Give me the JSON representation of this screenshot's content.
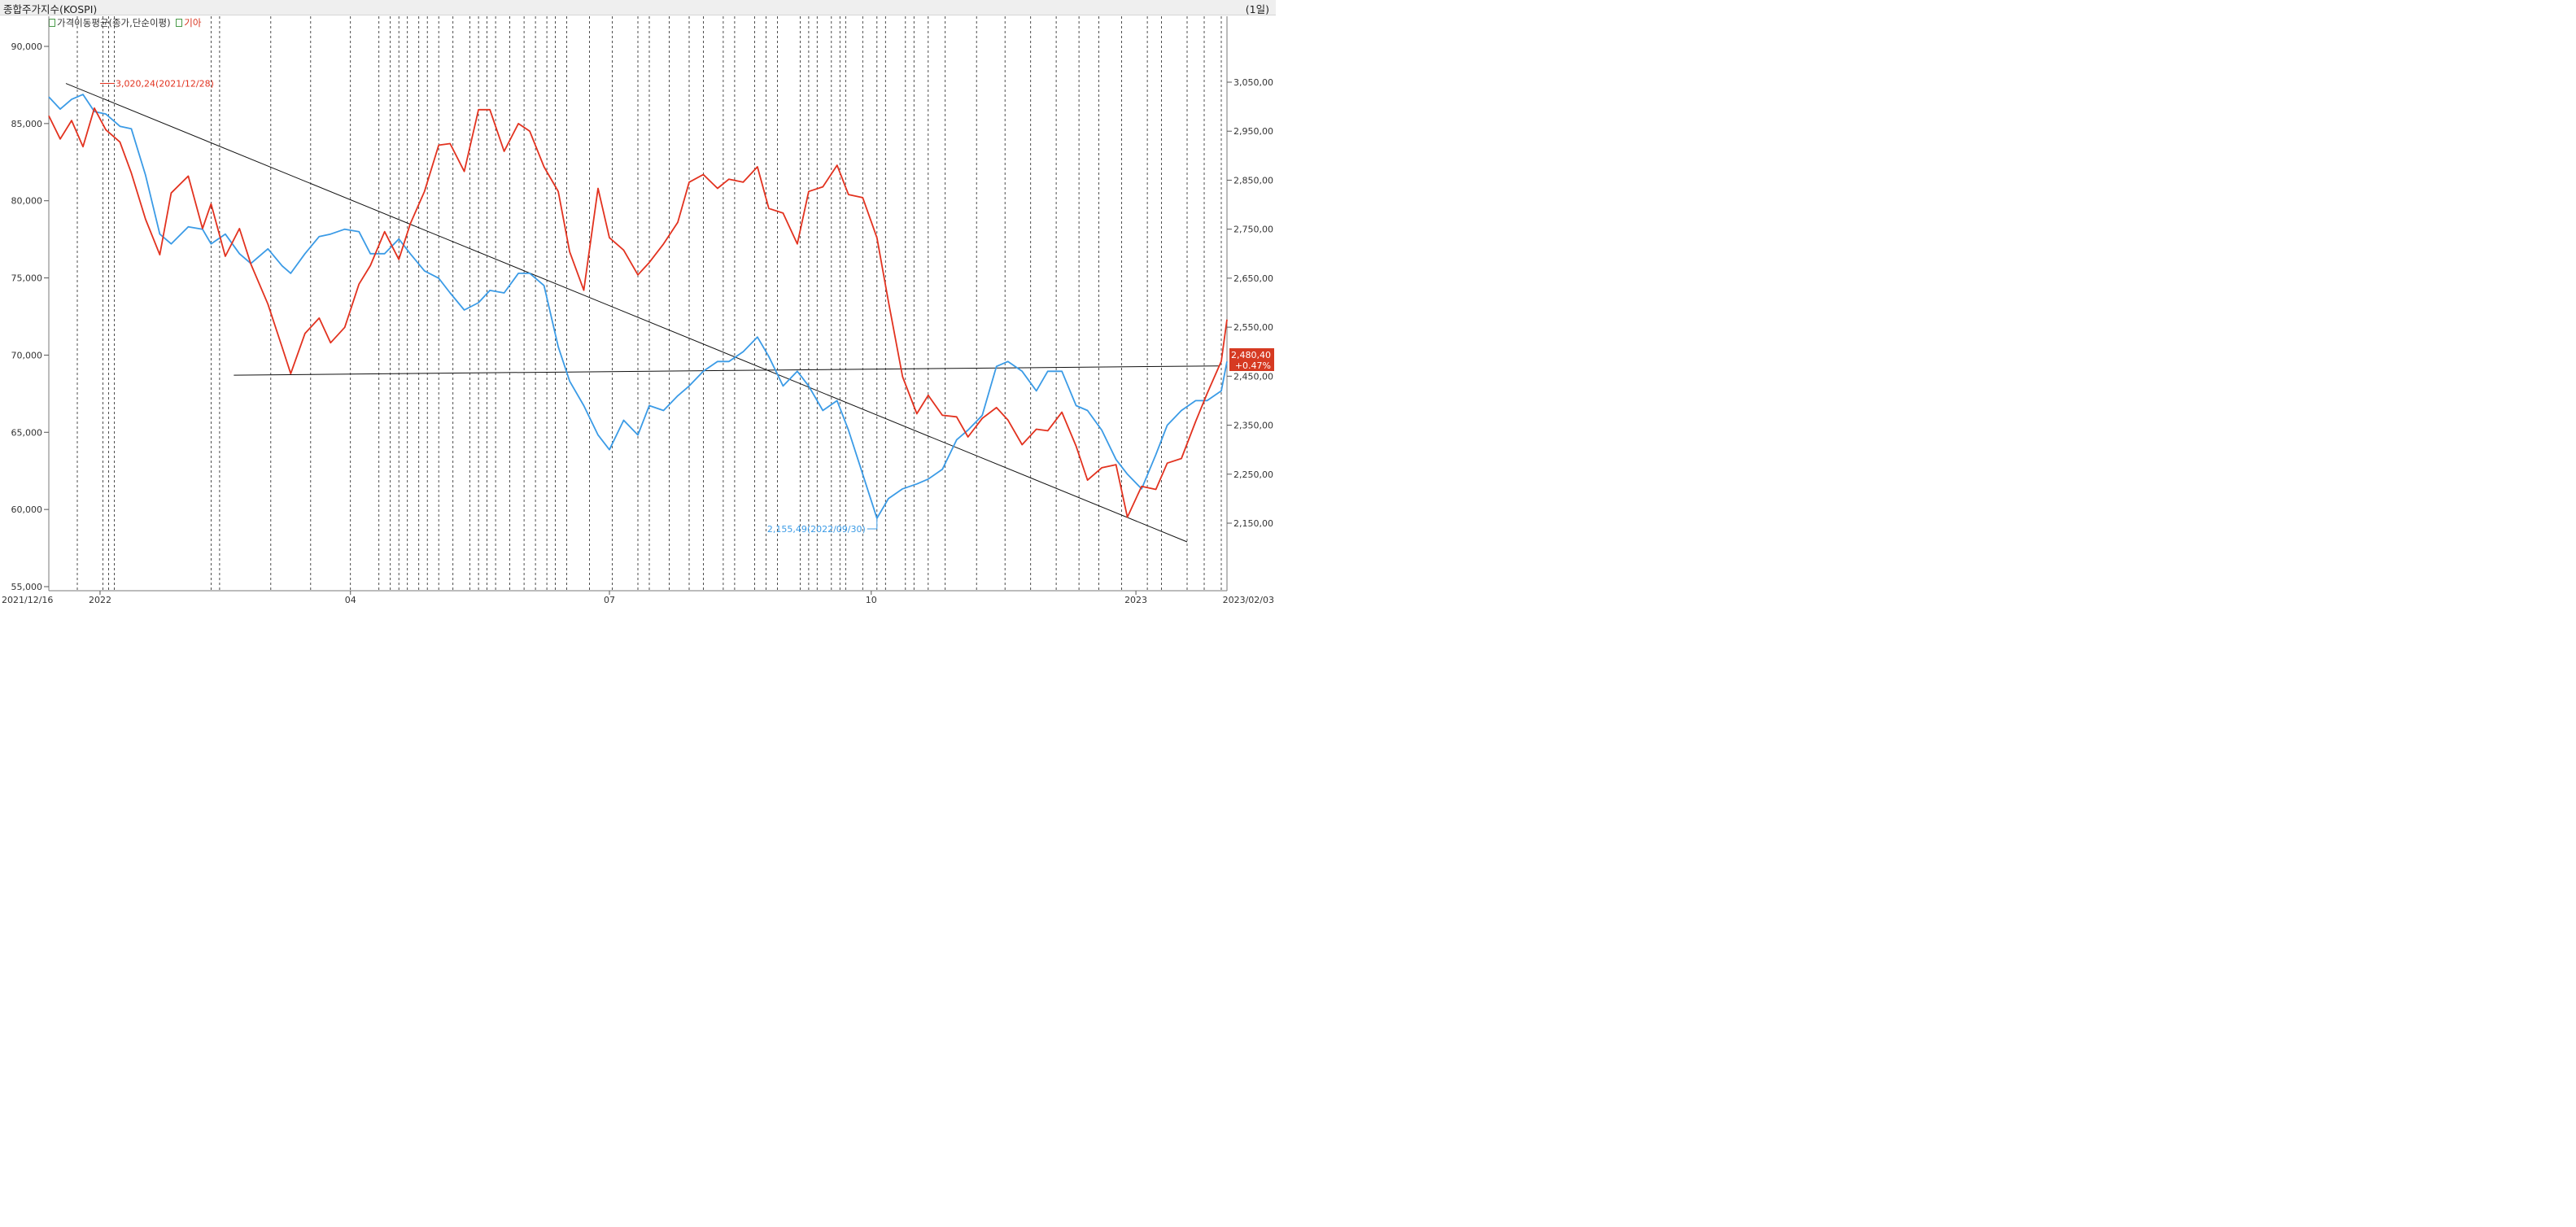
{
  "window": {
    "title": "종합주가지수(KOSPI)",
    "period": "(1일)"
  },
  "legend": {
    "ma_label": "가격이동평균(종가,단순이평)",
    "kia_label": "기아"
  },
  "colors": {
    "kia": "#e2321f",
    "kospi": "#3b9be6",
    "trendline": "#111111",
    "grid": "#222222",
    "axis_text": "#333333"
  },
  "chart_data": {
    "type": "line",
    "x_axis": {
      "labels": [
        "2021/12/16",
        "2022",
        "04",
        "07",
        "10",
        "2023",
        "2023/02/03"
      ]
    },
    "left_axis": {
      "ylim": [
        55000,
        90000
      ],
      "ticks": [
        "55,000",
        "60,000",
        "65,000",
        "70,000",
        "75,000",
        "80,000",
        "85,000",
        "90,000"
      ]
    },
    "right_axis": {
      "ylim": [
        2100,
        3100
      ],
      "ticks": [
        "2,150,00",
        "2,250,00",
        "2,350,00",
        "2,450,00",
        "2,550,00",
        "2,650,00",
        "2,750,00",
        "2,850,00",
        "2,950,00",
        "3,050,00"
      ]
    },
    "series": [
      {
        "name": "기아",
        "axis": "left",
        "x": [
          "2021-12-16",
          "2021-12-20",
          "2021-12-24",
          "2021-12-28",
          "2022-01-01",
          "2022-01-05",
          "2022-01-10",
          "2022-01-14",
          "2022-01-19",
          "2022-01-24",
          "2022-01-28",
          "2022-02-03",
          "2022-02-08",
          "2022-02-11",
          "2022-02-16",
          "2022-02-21",
          "2022-02-25",
          "2022-03-03",
          "2022-03-08",
          "2022-03-11",
          "2022-03-16",
          "2022-03-21",
          "2022-03-25",
          "2022-03-30",
          "2022-04-04",
          "2022-04-08",
          "2022-04-13",
          "2022-04-18",
          "2022-04-22",
          "2022-04-27",
          "2022-05-02",
          "2022-05-06",
          "2022-05-11",
          "2022-05-16",
          "2022-05-20",
          "2022-05-25",
          "2022-05-30",
          "2022-06-03",
          "2022-06-08",
          "2022-06-13",
          "2022-06-17",
          "2022-06-22",
          "2022-06-27",
          "2022-07-01",
          "2022-07-06",
          "2022-07-11",
          "2022-07-15",
          "2022-07-20",
          "2022-07-25",
          "2022-07-29",
          "2022-08-03",
          "2022-08-08",
          "2022-08-12",
          "2022-08-17",
          "2022-08-22",
          "2022-08-26",
          "2022-08-31",
          "2022-09-05",
          "2022-09-09",
          "2022-09-14",
          "2022-09-19",
          "2022-09-23",
          "2022-09-28",
          "2022-10-03",
          "2022-10-07",
          "2022-10-12",
          "2022-10-17",
          "2022-10-21",
          "2022-10-26",
          "2022-10-31",
          "2022-11-04",
          "2022-11-09",
          "2022-11-14",
          "2022-11-18",
          "2022-11-23",
          "2022-11-28",
          "2022-12-02",
          "2022-12-07",
          "2022-12-12",
          "2022-12-16",
          "2022-12-21",
          "2022-12-26",
          "2022-12-30",
          "2023-01-04",
          "2023-01-09",
          "2023-01-13",
          "2023-01-18",
          "2023-01-23",
          "2023-01-27",
          "2023-02-01",
          "2023-02-03"
        ],
        "values": [
          85500,
          84000,
          85200,
          83500,
          86000,
          84600,
          83800,
          81800,
          78800,
          76500,
          80500,
          81600,
          78200,
          79800,
          76400,
          78200,
          75900,
          73300,
          70500,
          68800,
          71400,
          72400,
          70800,
          71800,
          74600,
          75800,
          78000,
          76200,
          78500,
          80600,
          83600,
          83700,
          81900,
          85900,
          85900,
          83200,
          85000,
          84500,
          82200,
          80600,
          76700,
          74200,
          80800,
          77600,
          76800,
          75200,
          76000,
          77200,
          78600,
          81200,
          81700,
          80800,
          81400,
          81200,
          82200,
          79500,
          79200,
          77200,
          80600,
          80900,
          82300,
          80400,
          80200,
          77600,
          73500,
          68600,
          66200,
          67400,
          66100,
          66000,
          64700,
          65900,
          66600,
          65800,
          64200,
          65200,
          65100,
          66300,
          64100,
          61900,
          62700,
          62900,
          59500,
          61500,
          61300,
          63000,
          63300,
          65700,
          67500,
          69600,
          72300
        ]
      },
      {
        "name": "KOSPI",
        "axis": "right",
        "x": [
          "2021-12-16",
          "2021-12-20",
          "2021-12-24",
          "2021-12-28",
          "2022-01-01",
          "2022-01-05",
          "2022-01-10",
          "2022-01-14",
          "2022-01-19",
          "2022-01-24",
          "2022-01-28",
          "2022-02-03",
          "2022-02-08",
          "2022-02-11",
          "2022-02-16",
          "2022-02-21",
          "2022-02-25",
          "2022-03-03",
          "2022-03-08",
          "2022-03-11",
          "2022-03-16",
          "2022-03-21",
          "2022-03-25",
          "2022-03-30",
          "2022-04-04",
          "2022-04-08",
          "2022-04-13",
          "2022-04-18",
          "2022-04-22",
          "2022-04-27",
          "2022-05-02",
          "2022-05-06",
          "2022-05-11",
          "2022-05-16",
          "2022-05-20",
          "2022-05-25",
          "2022-05-30",
          "2022-06-03",
          "2022-06-08",
          "2022-06-13",
          "2022-06-17",
          "2022-06-22",
          "2022-06-27",
          "2022-07-01",
          "2022-07-06",
          "2022-07-11",
          "2022-07-15",
          "2022-07-20",
          "2022-07-25",
          "2022-07-29",
          "2022-08-03",
          "2022-08-08",
          "2022-08-12",
          "2022-08-17",
          "2022-08-22",
          "2022-08-26",
          "2022-08-31",
          "2022-09-05",
          "2022-09-09",
          "2022-09-14",
          "2022-09-19",
          "2022-09-23",
          "2022-09-28",
          "2022-10-03",
          "2022-10-07",
          "2022-10-12",
          "2022-10-17",
          "2022-10-21",
          "2022-10-26",
          "2022-10-31",
          "2022-11-04",
          "2022-11-09",
          "2022-11-14",
          "2022-11-18",
          "2022-11-23",
          "2022-11-28",
          "2022-12-02",
          "2022-12-07",
          "2022-12-12",
          "2022-12-16",
          "2022-12-21",
          "2022-12-26",
          "2022-12-30",
          "2023-01-04",
          "2023-01-09",
          "2023-01-13",
          "2023-01-18",
          "2023-01-23",
          "2023-01-27",
          "2023-02-01",
          "2023-02-03"
        ],
        "values": [
          3020,
          2995,
          3015,
          3025,
          2990,
          2985,
          2960,
          2955,
          2860,
          2740,
          2720,
          2755,
          2750,
          2720,
          2740,
          2700,
          2680,
          2710,
          2675,
          2660,
          2700,
          2735,
          2740,
          2750,
          2745,
          2700,
          2700,
          2730,
          2700,
          2665,
          2650,
          2620,
          2585,
          2600,
          2625,
          2620,
          2660,
          2660,
          2635,
          2510,
          2440,
          2390,
          2330,
          2300,
          2360,
          2330,
          2390,
          2380,
          2410,
          2430,
          2460,
          2480,
          2480,
          2500,
          2530,
          2490,
          2430,
          2460,
          2430,
          2380,
          2400,
          2340,
          2250,
          2160,
          2200,
          2220,
          2230,
          2240,
          2260,
          2320,
          2340,
          2370,
          2470,
          2480,
          2460,
          2420,
          2460,
          2460,
          2390,
          2380,
          2340,
          2280,
          2250,
          2220,
          2290,
          2350,
          2380,
          2400,
          2400,
          2420,
          2480
        ]
      }
    ],
    "trendlines": [
      {
        "from": [
          "2021-12-22",
          87600
        ],
        "to": [
          "2023-01-20",
          57900
        ]
      },
      {
        "from": [
          "2022-02-19",
          68700
        ],
        "to": [
          "2023-01-31",
          69300
        ]
      }
    ],
    "event_lines": [
      "2021-12-26",
      "2022-01-04",
      "2022-01-06",
      "2022-01-08",
      "2022-02-11",
      "2022-02-14",
      "2022-03-04",
      "2022-03-18",
      "2022-04-01",
      "2022-04-11",
      "2022-04-15",
      "2022-04-18",
      "2022-04-21",
      "2022-04-25",
      "2022-04-28",
      "2022-05-02",
      "2022-05-07",
      "2022-05-13",
      "2022-05-16",
      "2022-05-19",
      "2022-05-22",
      "2022-05-27",
      "2022-06-01",
      "2022-06-05",
      "2022-06-09",
      "2022-06-12",
      "2022-06-16",
      "2022-06-24",
      "2022-07-02",
      "2022-07-11",
      "2022-07-15",
      "2022-07-22",
      "2022-07-29",
      "2022-08-03",
      "2022-08-10",
      "2022-08-14",
      "2022-08-21",
      "2022-08-25",
      "2022-08-29",
      "2022-09-06",
      "2022-09-09",
      "2022-09-12",
      "2022-09-17",
      "2022-09-20",
      "2022-09-22",
      "2022-09-28",
      "2022-10-03",
      "2022-10-06",
      "2022-10-13",
      "2022-10-16",
      "2022-10-21",
      "2022-10-27",
      "2022-11-07",
      "2022-11-17",
      "2022-11-26",
      "2022-12-05",
      "2022-12-13",
      "2022-12-20",
      "2022-12-28",
      "2023-01-06",
      "2023-01-11",
      "2023-01-20",
      "2023-01-26",
      "2023-02-01"
    ],
    "annotations": [
      {
        "text": "3,020,24(2021/12/28)",
        "series": "기아",
        "x": "2022-01-03",
        "y": 87600
      },
      {
        "text": "2,155,49(2022/09/30)",
        "series": "KOSPI",
        "x": "2022-10-03",
        "y": 2155
      }
    ],
    "last_value_badge": {
      "value": "2,480,40",
      "change": "+0.47%"
    }
  }
}
